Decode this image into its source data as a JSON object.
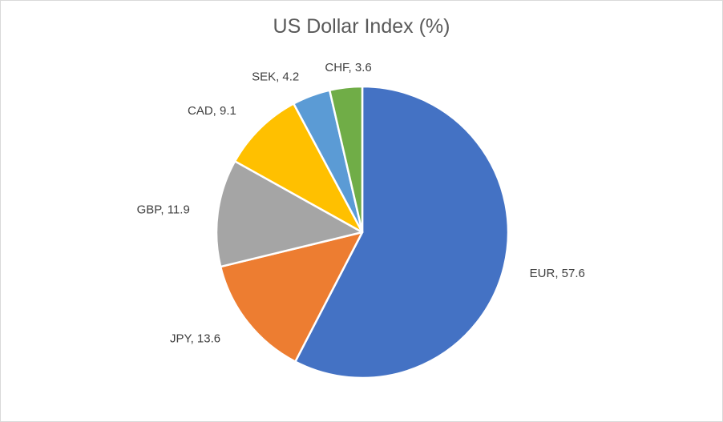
{
  "chart_data": {
    "type": "pie",
    "title": "US Dollar Index (%)",
    "categories": [
      "EUR",
      "JPY",
      "GBP",
      "CAD",
      "SEK",
      "CHF"
    ],
    "values": [
      57.6,
      13.6,
      11.9,
      9.1,
      4.2,
      3.6
    ],
    "colors": [
      "#4472C4",
      "#ED7D31",
      "#A5A5A5",
      "#FFC000",
      "#5B9BD5",
      "#70AD47"
    ],
    "labels": [
      "EUR, 57.6",
      "JPY, 13.6",
      "GBP, 11.9",
      "CAD, 9.1",
      "SEK, 4.2",
      "CHF, 3.6"
    ],
    "start_angle_deg": 0,
    "direction": "clockwise",
    "legend": "none"
  }
}
